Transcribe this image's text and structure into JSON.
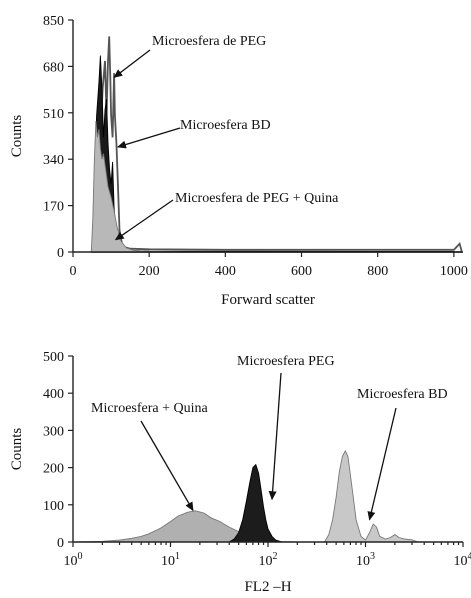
{
  "chart_data": [
    {
      "type": "area",
      "xlabel": "Forward scatter",
      "ylabel": "Counts",
      "xlim": [
        0,
        1024
      ],
      "ylim": [
        0,
        850
      ],
      "xticks": [
        0,
        200,
        400,
        600,
        800,
        1000
      ],
      "yticks": [
        0,
        170,
        340,
        510,
        680,
        850
      ],
      "grid": false,
      "series": [
        {
          "name": "Microesfera de PEG",
          "color": "#666666",
          "x": [
            50,
            60,
            70,
            78,
            84,
            88,
            92,
            95,
            98,
            100,
            104,
            108,
            110,
            114,
            118,
            122,
            130,
            150,
            200,
            400,
            600,
            800,
            1000,
            1015,
            1020
          ],
          "values": [
            0,
            60,
            380,
            600,
            700,
            500,
            700,
            790,
            640,
            500,
            420,
            655,
            500,
            400,
            250,
            80,
            20,
            12,
            10,
            8,
            8,
            8,
            8,
            30,
            5
          ]
        },
        {
          "name": "Microesfera BD",
          "color": "#1a1a1a",
          "x": [
            50,
            56,
            62,
            68,
            72,
            76,
            80,
            84,
            88,
            92,
            96,
            100,
            104,
            108,
            114,
            120,
            130,
            140,
            160,
            200,
            1000
          ],
          "values": [
            0,
            250,
            500,
            620,
            720,
            600,
            420,
            520,
            560,
            400,
            300,
            250,
            330,
            160,
            60,
            30,
            15,
            10,
            5,
            3,
            2
          ]
        },
        {
          "name": "Microesfera de PEG + Quina",
          "color": "#b8b8b8",
          "x": [
            48,
            52,
            56,
            60,
            64,
            68,
            72,
            76,
            80,
            86,
            92,
            100,
            108,
            116,
            126,
            140,
            160,
            200,
            300
          ],
          "values": [
            0,
            120,
            330,
            480,
            420,
            450,
            380,
            340,
            360,
            300,
            240,
            200,
            150,
            90,
            40,
            15,
            6,
            2,
            0
          ]
        }
      ],
      "annotations": [
        {
          "text": "Microesfera de PEG",
          "points_to": [
            108,
            640
          ]
        },
        {
          "text": "Microesfera BD",
          "points_to": [
            118,
            385
          ]
        },
        {
          "text": "Microesfera de PEG + Quina",
          "points_to": [
            112,
            45
          ]
        }
      ]
    },
    {
      "type": "area",
      "xlabel": "FL2 –H",
      "ylabel": "Counts",
      "xscale": "log",
      "xlim": [
        1,
        10000
      ],
      "ylim": [
        0,
        500
      ],
      "xticks": [
        1,
        10,
        100,
        1000,
        10000
      ],
      "xtick_labels": [
        {
          "base": "10",
          "exp": "0"
        },
        {
          "base": "10",
          "exp": "1"
        },
        {
          "base": "10",
          "exp": "2"
        },
        {
          "base": "10",
          "exp": "3"
        },
        {
          "base": "10",
          "exp": "4"
        }
      ],
      "yticks": [
        0,
        100,
        200,
        300,
        400,
        500
      ],
      "grid": false,
      "series": [
        {
          "name": "Microesfera + Quina",
          "color": "#b0b0b0",
          "x": [
            1,
            2,
            3,
            4,
            5,
            6,
            8,
            10,
            12,
            15,
            18,
            22,
            26,
            32,
            40,
            50,
            60,
            70,
            80,
            100,
            130,
            200
          ],
          "values": [
            0,
            2,
            5,
            10,
            15,
            22,
            38,
            55,
            70,
            80,
            84,
            78,
            65,
            55,
            40,
            28,
            18,
            12,
            6,
            3,
            1,
            0
          ]
        },
        {
          "name": "Microesfera PEG",
          "color": "#1c1c1c",
          "x": [
            40,
            45,
            50,
            55,
            60,
            65,
            70,
            75,
            80,
            85,
            90,
            95,
            100,
            110,
            120,
            140
          ],
          "values": [
            0,
            8,
            25,
            60,
            110,
            160,
            200,
            208,
            185,
            140,
            95,
            60,
            35,
            15,
            5,
            0
          ]
        },
        {
          "name": "Microesfera BD",
          "color": "#c8c8c8",
          "x": [
            380,
            420,
            460,
            500,
            540,
            580,
            620,
            660,
            700,
            750,
            800,
            900,
            1000,
            1100,
            1200,
            1300,
            1400,
            1600,
            1800,
            2000,
            2200,
            2500,
            3000,
            3500
          ],
          "values": [
            0,
            20,
            60,
            120,
            190,
            230,
            245,
            230,
            180,
            120,
            60,
            15,
            5,
            25,
            48,
            40,
            15,
            8,
            12,
            20,
            12,
            8,
            6,
            0
          ]
        }
      ],
      "annotations": [
        {
          "text": "Microesfera + Quina",
          "points_to": [
            17,
            85
          ]
        },
        {
          "text": "Microesfera PEG",
          "points_to": [
            110,
            115
          ]
        },
        {
          "text": "Microesfera BD",
          "points_to": [
            1100,
            60
          ]
        }
      ]
    }
  ]
}
